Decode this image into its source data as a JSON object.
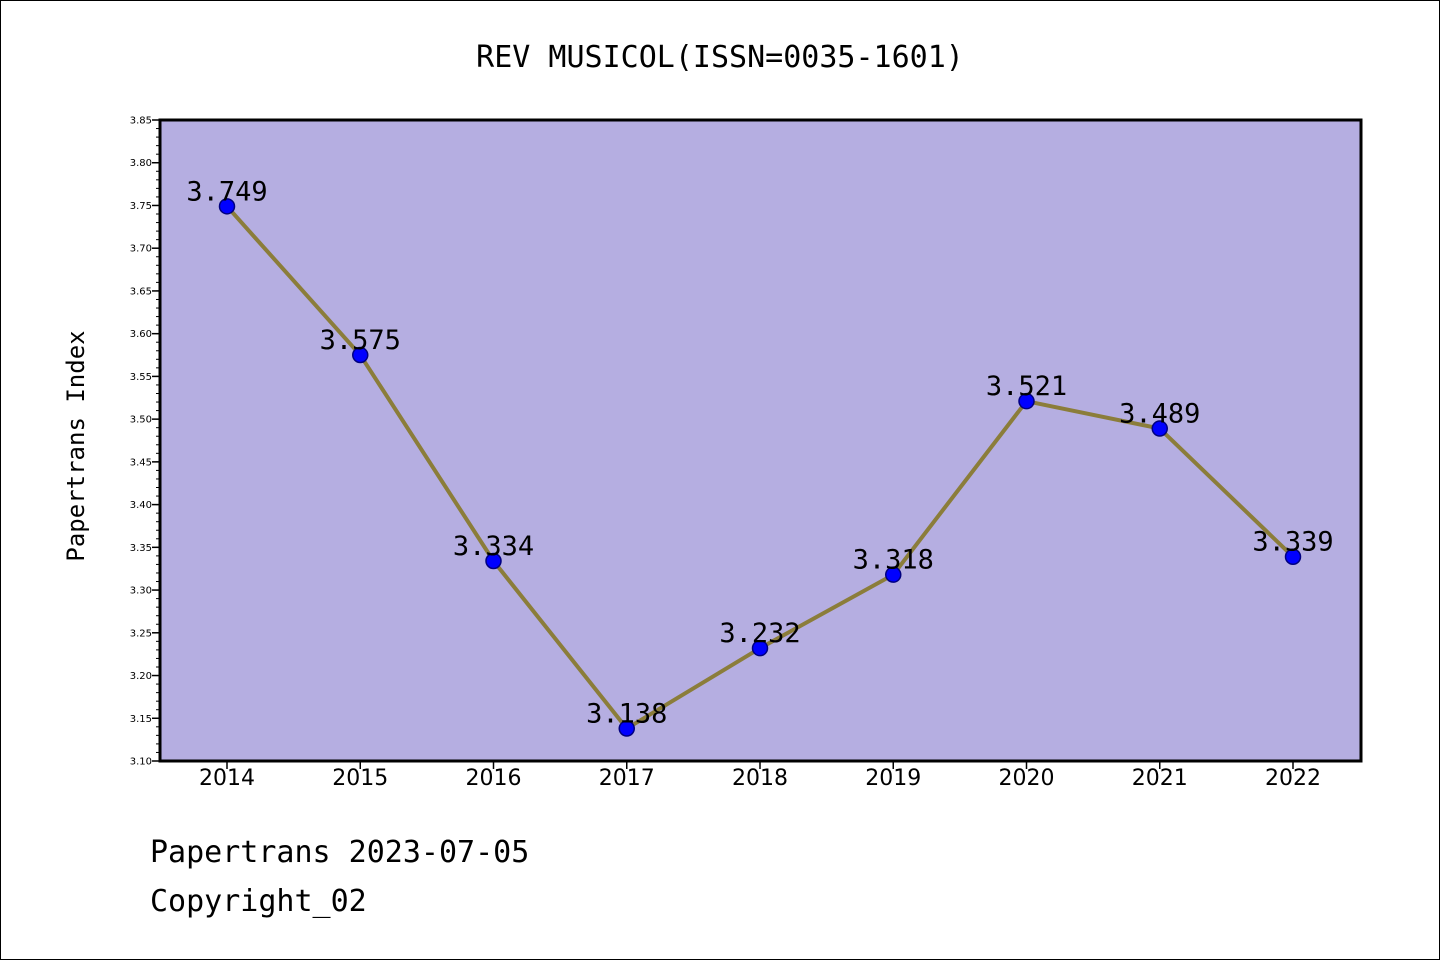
{
  "chart_data": {
    "type": "line",
    "title": "REV MUSICOL(ISSN=0035-1601)",
    "xlabel": "",
    "ylabel": "Papertrans Index",
    "categories": [
      "2014",
      "2015",
      "2016",
      "2017",
      "2018",
      "2019",
      "2020",
      "2021",
      "2022"
    ],
    "values": [
      3.749,
      3.575,
      3.334,
      3.138,
      3.232,
      3.318,
      3.521,
      3.489,
      3.339
    ],
    "data_labels": [
      "3.749",
      "3.575",
      "3.334",
      "3.138",
      "3.232",
      "3.318",
      "3.521",
      "3.489",
      "3.339"
    ],
    "ylim": [
      3.1,
      3.85
    ],
    "yticks": [
      "3.10",
      "3.15",
      "3.20",
      "3.25",
      "3.30",
      "3.35",
      "3.40",
      "3.45",
      "3.50",
      "3.55",
      "3.60",
      "3.65",
      "3.70",
      "3.75",
      "3.80",
      "3.85"
    ],
    "grid": false,
    "legend": "none",
    "colors": {
      "plot_background": "#b5aee1",
      "line": "#8b7d3a",
      "marker_fill": "#0000ff",
      "marker_edge": "#000080"
    }
  },
  "footer": {
    "date_text": "Papertrans 2023-07-05",
    "copyright_text": "Copyright_02"
  }
}
